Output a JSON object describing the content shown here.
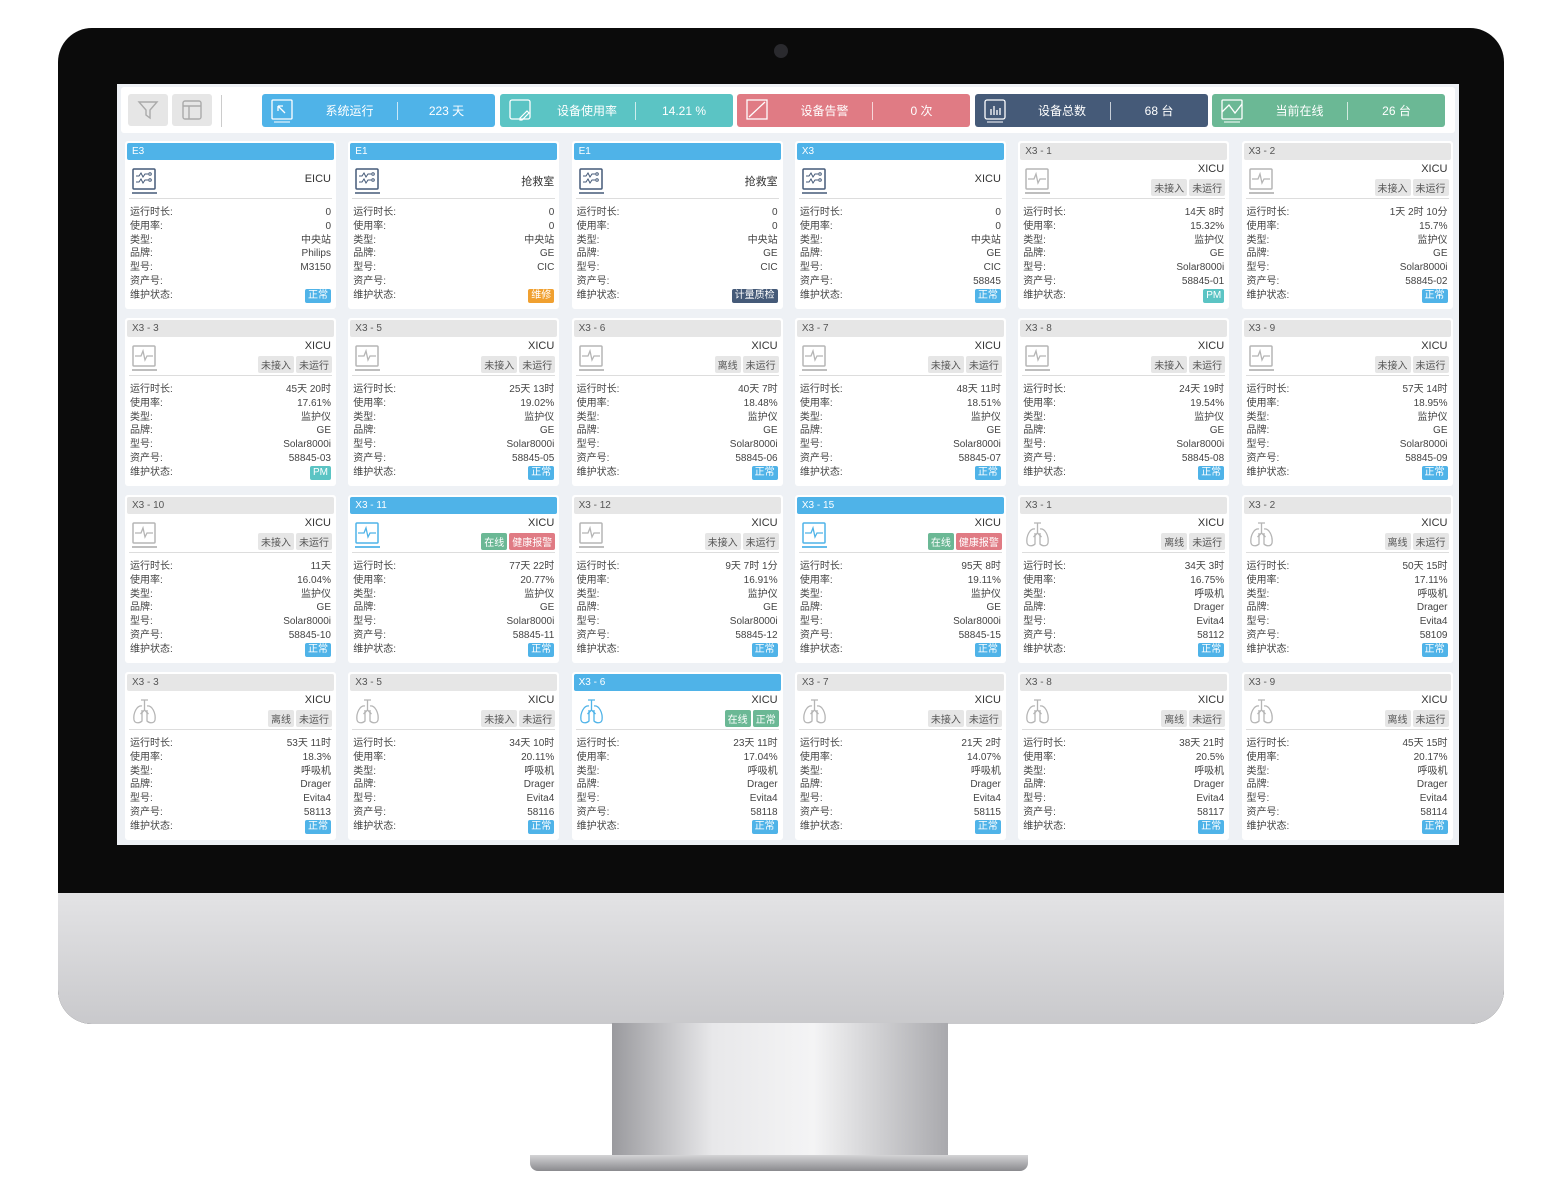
{
  "toolbar": {
    "filter_icon": "filter-icon",
    "layout_icon": "layout-icon"
  },
  "stats": [
    {
      "label": "系统运行",
      "value": "223 天",
      "color": "#4fb3e8",
      "icon": "cursor-arrow-icon"
    },
    {
      "label": "设备使用率",
      "value": "14.21 %",
      "color": "#5bc4c4",
      "icon": "edit-icon"
    },
    {
      "label": "设备告警",
      "value": "0 次",
      "color": "#e07b84",
      "icon": "alert-slash-icon"
    },
    {
      "label": "设备总数",
      "value": "68 台",
      "color": "#455a78",
      "icon": "bar-chart-icon"
    },
    {
      "label": "当前在线",
      "value": "26 台",
      "color": "#6bb895",
      "icon": "line-chart-icon"
    }
  ],
  "labels": [
    "运行时长:",
    "使用率:",
    "类型:",
    "品牌:",
    "型号:",
    "资产号:",
    "维护状态:"
  ],
  "colors": {
    "blue": "#4fb3e8",
    "teal": "#5bc4c4",
    "orange": "#f0a030",
    "navy": "#455a78",
    "green": "#6bb895",
    "red": "#e07b84"
  },
  "cards": [
    {
      "title": "E3",
      "hl": true,
      "icon": "central",
      "location": "EICU",
      "tags": [],
      "values": [
        "0",
        "0",
        "中央站",
        "Philips",
        "M3150",
        ""
      ],
      "status": {
        "text": "正常",
        "color": "blue"
      }
    },
    {
      "title": "E1",
      "hl": true,
      "icon": "central",
      "location": "抢救室",
      "tags": [],
      "values": [
        "0",
        "0",
        "中央站",
        "GE",
        "CIC",
        ""
      ],
      "status": {
        "text": "维修",
        "color": "orange"
      }
    },
    {
      "title": "E1",
      "hl": true,
      "icon": "central",
      "location": "抢救室",
      "tags": [],
      "values": [
        "0",
        "0",
        "中央站",
        "GE",
        "CIC",
        ""
      ],
      "status": {
        "text": "计量质检",
        "color": "navy"
      }
    },
    {
      "title": "X3",
      "hl": true,
      "icon": "central",
      "location": "XICU",
      "tags": [],
      "values": [
        "0",
        "0",
        "中央站",
        "GE",
        "CIC",
        "58845"
      ],
      "status": {
        "text": "正常",
        "color": "blue"
      }
    },
    {
      "title": "X3 - 1",
      "hl": false,
      "icon": "monitor",
      "location": "XICU",
      "tags": [
        {
          "text": "未接入"
        },
        {
          "text": "未运行"
        }
      ],
      "values": [
        "14天 8时",
        "15.32%",
        "监护仪",
        "GE",
        "Solar8000i",
        "58845-01"
      ],
      "status": {
        "text": "PM",
        "color": "teal"
      }
    },
    {
      "title": "X3 - 2",
      "hl": false,
      "icon": "monitor",
      "location": "XICU",
      "tags": [
        {
          "text": "未接入"
        },
        {
          "text": "未运行"
        }
      ],
      "values": [
        "1天 2时 10分",
        "15.7%",
        "监护仪",
        "GE",
        "Solar8000i",
        "58845-02"
      ],
      "status": {
        "text": "正常",
        "color": "blue"
      }
    },
    {
      "title": "X3 - 3",
      "hl": false,
      "icon": "monitor",
      "location": "XICU",
      "tags": [
        {
          "text": "未接入"
        },
        {
          "text": "未运行"
        }
      ],
      "values": [
        "45天 20时",
        "17.61%",
        "监护仪",
        "GE",
        "Solar8000i",
        "58845-03"
      ],
      "status": {
        "text": "PM",
        "color": "teal"
      }
    },
    {
      "title": "X3 - 5",
      "hl": false,
      "icon": "monitor",
      "location": "XICU",
      "tags": [
        {
          "text": "未接入"
        },
        {
          "text": "未运行"
        }
      ],
      "values": [
        "25天 13时",
        "19.02%",
        "监护仪",
        "GE",
        "Solar8000i",
        "58845-05"
      ],
      "status": {
        "text": "正常",
        "color": "blue"
      }
    },
    {
      "title": "X3 - 6",
      "hl": false,
      "icon": "monitor",
      "location": "XICU",
      "tags": [
        {
          "text": "离线"
        },
        {
          "text": "未运行"
        }
      ],
      "values": [
        "40天 7时",
        "18.48%",
        "监护仪",
        "GE",
        "Solar8000i",
        "58845-06"
      ],
      "status": {
        "text": "正常",
        "color": "blue"
      }
    },
    {
      "title": "X3 - 7",
      "hl": false,
      "icon": "monitor",
      "location": "XICU",
      "tags": [
        {
          "text": "未接入"
        },
        {
          "text": "未运行"
        }
      ],
      "values": [
        "48天 11时",
        "18.51%",
        "监护仪",
        "GE",
        "Solar8000i",
        "58845-07"
      ],
      "status": {
        "text": "正常",
        "color": "blue"
      }
    },
    {
      "title": "X3 - 8",
      "hl": false,
      "icon": "monitor",
      "location": "XICU",
      "tags": [
        {
          "text": "未接入"
        },
        {
          "text": "未运行"
        }
      ],
      "values": [
        "24天 19时",
        "19.54%",
        "监护仪",
        "GE",
        "Solar8000i",
        "58845-08"
      ],
      "status": {
        "text": "正常",
        "color": "blue"
      }
    },
    {
      "title": "X3 - 9",
      "hl": false,
      "icon": "monitor",
      "location": "XICU",
      "tags": [
        {
          "text": "未接入"
        },
        {
          "text": "未运行"
        }
      ],
      "values": [
        "57天 14时",
        "18.95%",
        "监护仪",
        "GE",
        "Solar8000i",
        "58845-09"
      ],
      "status": {
        "text": "正常",
        "color": "blue"
      }
    },
    {
      "title": "X3 - 10",
      "hl": false,
      "icon": "monitor",
      "location": "XICU",
      "tags": [
        {
          "text": "未接入"
        },
        {
          "text": "未运行"
        }
      ],
      "values": [
        "11天",
        "16.04%",
        "监护仪",
        "GE",
        "Solar8000i",
        "58845-10"
      ],
      "status": {
        "text": "正常",
        "color": "blue"
      }
    },
    {
      "title": "X3 - 11",
      "hl": true,
      "icon": "monitor",
      "location": "XICU",
      "tags": [
        {
          "text": "在线",
          "color": "green"
        },
        {
          "text": "健康报警",
          "color": "red"
        }
      ],
      "values": [
        "77天 22时",
        "20.77%",
        "监护仪",
        "GE",
        "Solar8000i",
        "58845-11"
      ],
      "status": {
        "text": "正常",
        "color": "blue"
      }
    },
    {
      "title": "X3 - 12",
      "hl": false,
      "icon": "monitor",
      "location": "XICU",
      "tags": [
        {
          "text": "未接入"
        },
        {
          "text": "未运行"
        }
      ],
      "values": [
        "9天 7时 1分",
        "16.91%",
        "监护仪",
        "GE",
        "Solar8000i",
        "58845-12"
      ],
      "status": {
        "text": "正常",
        "color": "blue"
      }
    },
    {
      "title": "X3 - 15",
      "hl": true,
      "icon": "monitor",
      "location": "XICU",
      "tags": [
        {
          "text": "在线",
          "color": "green"
        },
        {
          "text": "健康报警",
          "color": "red"
        }
      ],
      "values": [
        "95天 8时",
        "19.11%",
        "监护仪",
        "GE",
        "Solar8000i",
        "58845-15"
      ],
      "status": {
        "text": "正常",
        "color": "blue"
      }
    },
    {
      "title": "X3 - 1",
      "hl": false,
      "icon": "ventilator",
      "location": "XICU",
      "tags": [
        {
          "text": "离线"
        },
        {
          "text": "未运行"
        }
      ],
      "values": [
        "34天 3时",
        "16.75%",
        "呼吸机",
        "Drager",
        "Evita4",
        "58112"
      ],
      "status": {
        "text": "正常",
        "color": "blue"
      }
    },
    {
      "title": "X3 - 2",
      "hl": false,
      "icon": "ventilator",
      "location": "XICU",
      "tags": [
        {
          "text": "离线"
        },
        {
          "text": "未运行"
        }
      ],
      "values": [
        "50天 15时",
        "17.11%",
        "呼吸机",
        "Drager",
        "Evita4",
        "58109"
      ],
      "status": {
        "text": "正常",
        "color": "blue"
      }
    },
    {
      "title": "X3 - 3",
      "hl": false,
      "icon": "ventilator",
      "location": "XICU",
      "tags": [
        {
          "text": "离线"
        },
        {
          "text": "未运行"
        }
      ],
      "values": [
        "53天 11时",
        "18.3%",
        "呼吸机",
        "Drager",
        "Evita4",
        "58113"
      ],
      "status": {
        "text": "正常",
        "color": "blue"
      }
    },
    {
      "title": "X3 - 5",
      "hl": false,
      "icon": "ventilator",
      "location": "XICU",
      "tags": [
        {
          "text": "未接入"
        },
        {
          "text": "未运行"
        }
      ],
      "values": [
        "34天 10时",
        "20.11%",
        "呼吸机",
        "Drager",
        "Evita4",
        "58116"
      ],
      "status": {
        "text": "正常",
        "color": "blue"
      }
    },
    {
      "title": "X3 - 6",
      "hl": true,
      "icon": "ventilator",
      "location": "XICU",
      "tags": [
        {
          "text": "在线",
          "color": "green"
        },
        {
          "text": "正常",
          "color": "green"
        }
      ],
      "values": [
        "23天 11时",
        "17.04%",
        "呼吸机",
        "Drager",
        "Evita4",
        "58118"
      ],
      "status": {
        "text": "正常",
        "color": "blue"
      }
    },
    {
      "title": "X3 - 7",
      "hl": false,
      "icon": "ventilator",
      "location": "XICU",
      "tags": [
        {
          "text": "未接入"
        },
        {
          "text": "未运行"
        }
      ],
      "values": [
        "21天 2时",
        "14.07%",
        "呼吸机",
        "Drager",
        "Evita4",
        "58115"
      ],
      "status": {
        "text": "正常",
        "color": "blue"
      }
    },
    {
      "title": "X3 - 8",
      "hl": false,
      "icon": "ventilator",
      "location": "XICU",
      "tags": [
        {
          "text": "离线"
        },
        {
          "text": "未运行"
        }
      ],
      "values": [
        "38天 21时",
        "20.5%",
        "呼吸机",
        "Drager",
        "Evita4",
        "58117"
      ],
      "status": {
        "text": "正常",
        "color": "blue"
      }
    },
    {
      "title": "X3 - 9",
      "hl": false,
      "icon": "ventilator",
      "location": "XICU",
      "tags": [
        {
          "text": "离线"
        },
        {
          "text": "未运行"
        }
      ],
      "values": [
        "45天 15时",
        "20.17%",
        "呼吸机",
        "Drager",
        "Evita4",
        "58114"
      ],
      "status": {
        "text": "正常",
        "color": "blue"
      }
    }
  ]
}
